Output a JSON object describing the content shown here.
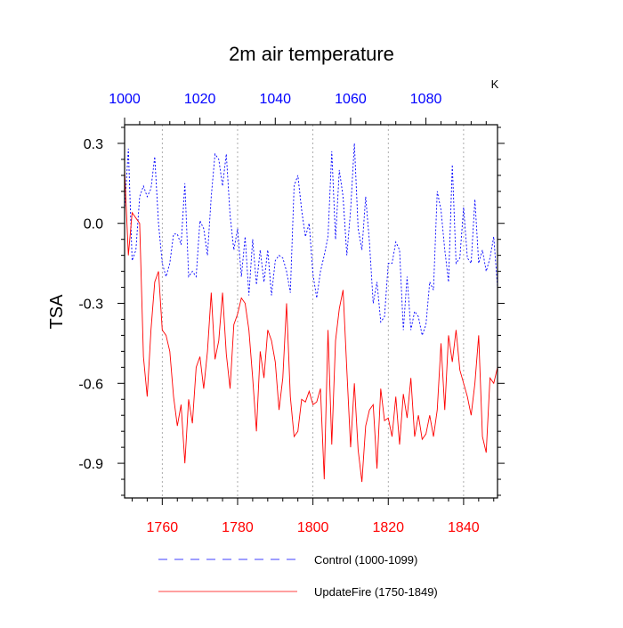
{
  "chart_data": {
    "type": "line",
    "title": "2m air temperature",
    "unit_label": "K",
    "ylabel": "TSA",
    "ylim": [
      -1.03,
      0.37
    ],
    "yticks": [
      0.3,
      0.0,
      -0.3,
      -0.6,
      -0.9
    ],
    "ytick_labels": [
      "0.3",
      "0.0",
      "-0.3",
      "-0.6",
      "-0.9"
    ],
    "top_axis": {
      "range": [
        1000,
        1099
      ],
      "ticks": [
        1000,
        1020,
        1040,
        1060,
        1080
      ],
      "tick_labels": [
        "1000",
        "1020",
        "1040",
        "1060",
        "1080"
      ],
      "color": "#0000ff"
    },
    "bottom_axis": {
      "range": [
        1750,
        1849
      ],
      "ticks": [
        1760,
        1780,
        1800,
        1820,
        1840
      ],
      "tick_labels": [
        "1760",
        "1780",
        "1800",
        "1820",
        "1840"
      ],
      "color": "#ff0000"
    },
    "grid": "vertical dotted",
    "legend_position": "bottom",
    "series": [
      {
        "name": "Control (1000-1099)",
        "axis": "top",
        "color": "#0000ff",
        "dash": "dashed",
        "values": [
          0.05,
          0.28,
          -0.14,
          -0.1,
          0.1,
          0.14,
          0.1,
          0.13,
          0.25,
          0.0,
          -0.15,
          -0.2,
          -0.15,
          -0.04,
          -0.04,
          -0.08,
          0.15,
          -0.2,
          -0.18,
          -0.2,
          0.01,
          -0.02,
          -0.12,
          0.1,
          0.26,
          0.24,
          0.14,
          0.26,
          0.03,
          -0.1,
          -0.02,
          -0.2,
          -0.05,
          -0.27,
          -0.06,
          -0.23,
          -0.1,
          -0.22,
          -0.1,
          -0.27,
          -0.14,
          -0.12,
          -0.13,
          -0.18,
          -0.26,
          0.14,
          0.18,
          0.05,
          -0.05,
          0.0,
          -0.19,
          -0.28,
          -0.18,
          -0.12,
          -0.05,
          0.27,
          -0.06,
          0.2,
          0.1,
          -0.12,
          0.05,
          0.3,
          -0.02,
          -0.1,
          0.1,
          -0.07,
          -0.3,
          -0.22,
          -0.37,
          -0.35,
          -0.15,
          -0.15,
          -0.07,
          -0.1,
          -0.4,
          -0.2,
          -0.4,
          -0.33,
          -0.35,
          -0.42,
          -0.38,
          -0.22,
          -0.25,
          0.12,
          0.05,
          -0.1,
          -0.22,
          0.22,
          -0.15,
          -0.13,
          0.06,
          -0.13,
          -0.15,
          0.09,
          -0.15,
          -0.1,
          -0.18,
          -0.13,
          -0.05,
          -0.24
        ]
      },
      {
        "name": "UpdateFire (1750-1849)",
        "axis": "bottom",
        "color": "#ff0000",
        "dash": "solid",
        "values": [
          0.2,
          -0.12,
          0.04,
          0.02,
          0.0,
          -0.5,
          -0.65,
          -0.4,
          -0.22,
          -0.18,
          -0.4,
          -0.42,
          -0.48,
          -0.65,
          -0.76,
          -0.68,
          -0.9,
          -0.66,
          -0.75,
          -0.54,
          -0.5,
          -0.62,
          -0.48,
          -0.26,
          -0.51,
          -0.44,
          -0.26,
          -0.49,
          -0.62,
          -0.38,
          -0.34,
          -0.28,
          -0.3,
          -0.4,
          -0.58,
          -0.78,
          -0.48,
          -0.58,
          -0.4,
          -0.44,
          -0.52,
          -0.7,
          -0.58,
          -0.3,
          -0.65,
          -0.8,
          -0.78,
          -0.66,
          -0.67,
          -0.63,
          -0.68,
          -0.67,
          -0.62,
          -0.96,
          -0.4,
          -0.83,
          -0.44,
          -0.32,
          -0.25,
          -0.55,
          -0.84,
          -0.6,
          -0.85,
          -0.97,
          -0.76,
          -0.7,
          -0.68,
          -0.92,
          -0.62,
          -0.74,
          -0.73,
          -0.8,
          -0.65,
          -0.83,
          -0.64,
          -0.73,
          -0.58,
          -0.8,
          -0.72,
          -0.81,
          -0.79,
          -0.72,
          -0.8,
          -0.7,
          -0.45,
          -0.7,
          -0.42,
          -0.52,
          -0.4,
          -0.55,
          -0.6,
          -0.65,
          -0.72,
          -0.6,
          -0.42,
          -0.8,
          -0.86,
          -0.58,
          -0.6,
          -0.54
        ]
      }
    ]
  }
}
